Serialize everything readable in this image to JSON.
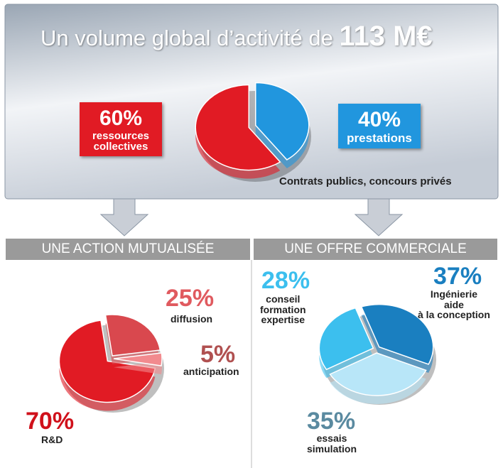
{
  "header": {
    "title": "Un volume global d’activité de",
    "amount": "113 M€"
  },
  "chart_data": [
    {
      "type": "pie",
      "categories": [
        "ressources\ncollectives",
        "prestations"
      ],
      "values": [
        60,
        40
      ],
      "value_labels": [
        "60%",
        "40%"
      ],
      "colors": [
        "#e11b24",
        "#2196de"
      ],
      "annotation": "Contrats publics, concours privés"
    },
    {
      "type": "pie",
      "title": "UNE ACTION MUTUALISÉE",
      "categories": [
        "R&D",
        "diffusion",
        "anticipation"
      ],
      "values": [
        70,
        25,
        5
      ],
      "value_labels": [
        "70%",
        "25%",
        "5%"
      ],
      "colors": [
        "#e11b24",
        "#d9484e",
        "#f28a8e"
      ]
    },
    {
      "type": "pie",
      "title": "UNE OFFRE COMMERCIALE",
      "categories": [
        "conseil\nformation\nexpertise",
        "Ingénierie\naide\nà la conception",
        "essais\nsimulation"
      ],
      "values": [
        28,
        37,
        35
      ],
      "value_labels": [
        "28%",
        "37%",
        "35%"
      ],
      "colors": [
        "#3cbfee",
        "#1a7fc0",
        "#b8e6f8"
      ]
    }
  ]
}
